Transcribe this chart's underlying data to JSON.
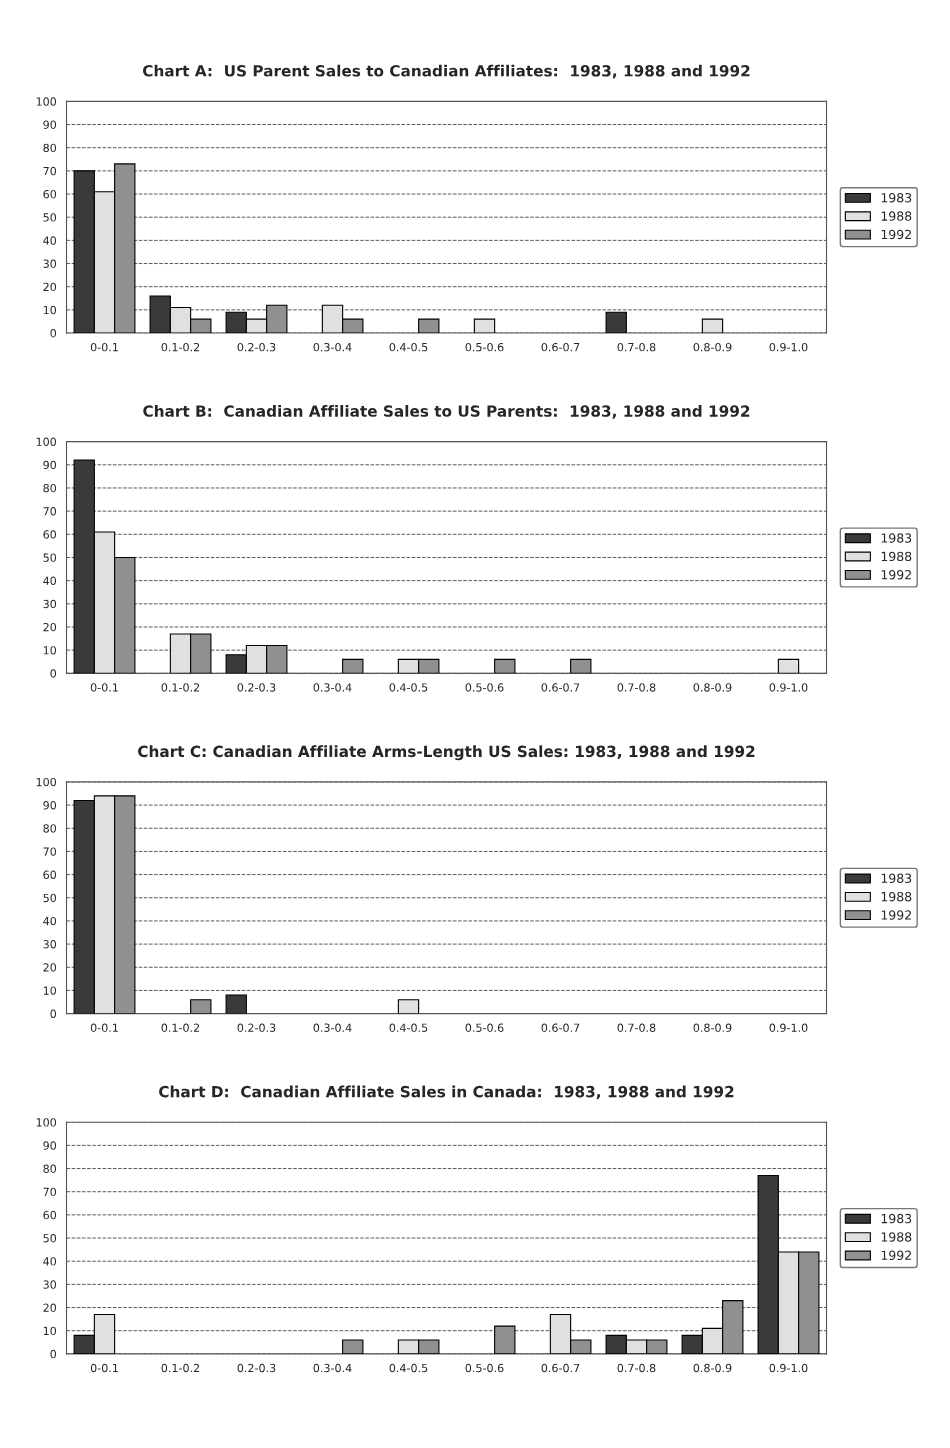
{
  "chart_data": [
    {
      "type": "bar",
      "title": "Chart A:  US Parent Sales to Canadian Affiliates:  1983, 1988 and 1992",
      "categories": [
        "0-0.1",
        "0.1-0.2",
        "0.2-0.3",
        "0.3-0.4",
        "0.4-0.5",
        "0.5-0.6",
        "0.6-0.7",
        "0.7-0.8",
        "0.8-0.9",
        "0.9-1.0"
      ],
      "series": [
        {
          "name": "1983",
          "color": "#3a3a3a",
          "values": [
            70,
            16,
            9,
            null,
            null,
            null,
            null,
            9,
            null,
            null
          ]
        },
        {
          "name": "1988",
          "color": "#e0e0e0",
          "values": [
            61,
            11,
            6,
            12,
            null,
            6,
            null,
            null,
            6,
            null
          ]
        },
        {
          "name": "1992",
          "color": "#909090",
          "values": [
            73,
            6,
            12,
            6,
            6,
            null,
            null,
            null,
            null,
            null
          ]
        }
      ],
      "ylim": [
        0,
        100
      ],
      "yticks": [
        0,
        10,
        20,
        30,
        40,
        50,
        60,
        70,
        80,
        90,
        100
      ],
      "grid": "y",
      "legend": "right"
    },
    {
      "type": "bar",
      "title": "Chart B:  Canadian Affiliate Sales to US Parents:  1983, 1988 and 1992",
      "categories": [
        "0-0.1",
        "0.1-0.2",
        "0.2-0.3",
        "0.3-0.4",
        "0.4-0.5",
        "0.5-0.6",
        "0.6-0.7",
        "0.7-0.8",
        "0.8-0.9",
        "0.9-1.0"
      ],
      "series": [
        {
          "name": "1983",
          "color": "#3a3a3a",
          "values": [
            92,
            null,
            8,
            null,
            null,
            null,
            null,
            null,
            null,
            null
          ]
        },
        {
          "name": "1988",
          "color": "#e0e0e0",
          "values": [
            61,
            17,
            12,
            null,
            6,
            null,
            null,
            null,
            null,
            6
          ]
        },
        {
          "name": "1992",
          "color": "#909090",
          "values": [
            50,
            17,
            12,
            6,
            6,
            6,
            6,
            null,
            null,
            null
          ]
        }
      ],
      "ylim": [
        0,
        100
      ],
      "yticks": [
        0,
        10,
        20,
        30,
        40,
        50,
        60,
        70,
        80,
        90,
        100
      ],
      "grid": "y",
      "legend": "right"
    },
    {
      "type": "bar",
      "title": "Chart C: Canadian Affiliate Arms-Length US Sales: 1983, 1988 and 1992",
      "categories": [
        "0-0.1",
        "0.1-0.2",
        "0.2-0.3",
        "0.3-0.4",
        "0.4-0.5",
        "0.5-0.6",
        "0.6-0.7",
        "0.7-0.8",
        "0.8-0.9",
        "0.9-1.0"
      ],
      "series": [
        {
          "name": "1983",
          "color": "#3a3a3a",
          "values": [
            92,
            null,
            8,
            null,
            null,
            null,
            null,
            null,
            null,
            null
          ]
        },
        {
          "name": "1988",
          "color": "#e0e0e0",
          "values": [
            94,
            null,
            null,
            null,
            6,
            null,
            null,
            null,
            null,
            null
          ]
        },
        {
          "name": "1992",
          "color": "#909090",
          "values": [
            94,
            6,
            null,
            null,
            null,
            null,
            null,
            null,
            null,
            null
          ]
        }
      ],
      "ylim": [
        0,
        100
      ],
      "yticks": [
        0,
        10,
        20,
        30,
        40,
        50,
        60,
        70,
        80,
        90,
        100
      ],
      "grid": "y",
      "legend": "right"
    },
    {
      "type": "bar",
      "title": "Chart D:  Canadian Affiliate Sales in Canada:  1983, 1988 and 1992",
      "categories": [
        "0-0.1",
        "0.1-0.2",
        "0.2-0.3",
        "0.3-0.4",
        "0.4-0.5",
        "0.5-0.6",
        "0.6-0.7",
        "0.7-0.8",
        "0.8-0.9",
        "0.9-1.0"
      ],
      "series": [
        {
          "name": "1983",
          "color": "#3a3a3a",
          "values": [
            8,
            null,
            null,
            null,
            null,
            null,
            null,
            8,
            8,
            77
          ]
        },
        {
          "name": "1988",
          "color": "#e0e0e0",
          "values": [
            17,
            null,
            null,
            null,
            6,
            null,
            17,
            6,
            11,
            44
          ]
        },
        {
          "name": "1992",
          "color": "#909090",
          "values": [
            null,
            null,
            null,
            6,
            6,
            12,
            6,
            6,
            23,
            44
          ]
        }
      ],
      "ylim": [
        0,
        100
      ],
      "yticks": [
        0,
        10,
        20,
        30,
        40,
        50,
        60,
        70,
        80,
        90,
        100
      ],
      "grid": "y",
      "legend": "right"
    }
  ]
}
